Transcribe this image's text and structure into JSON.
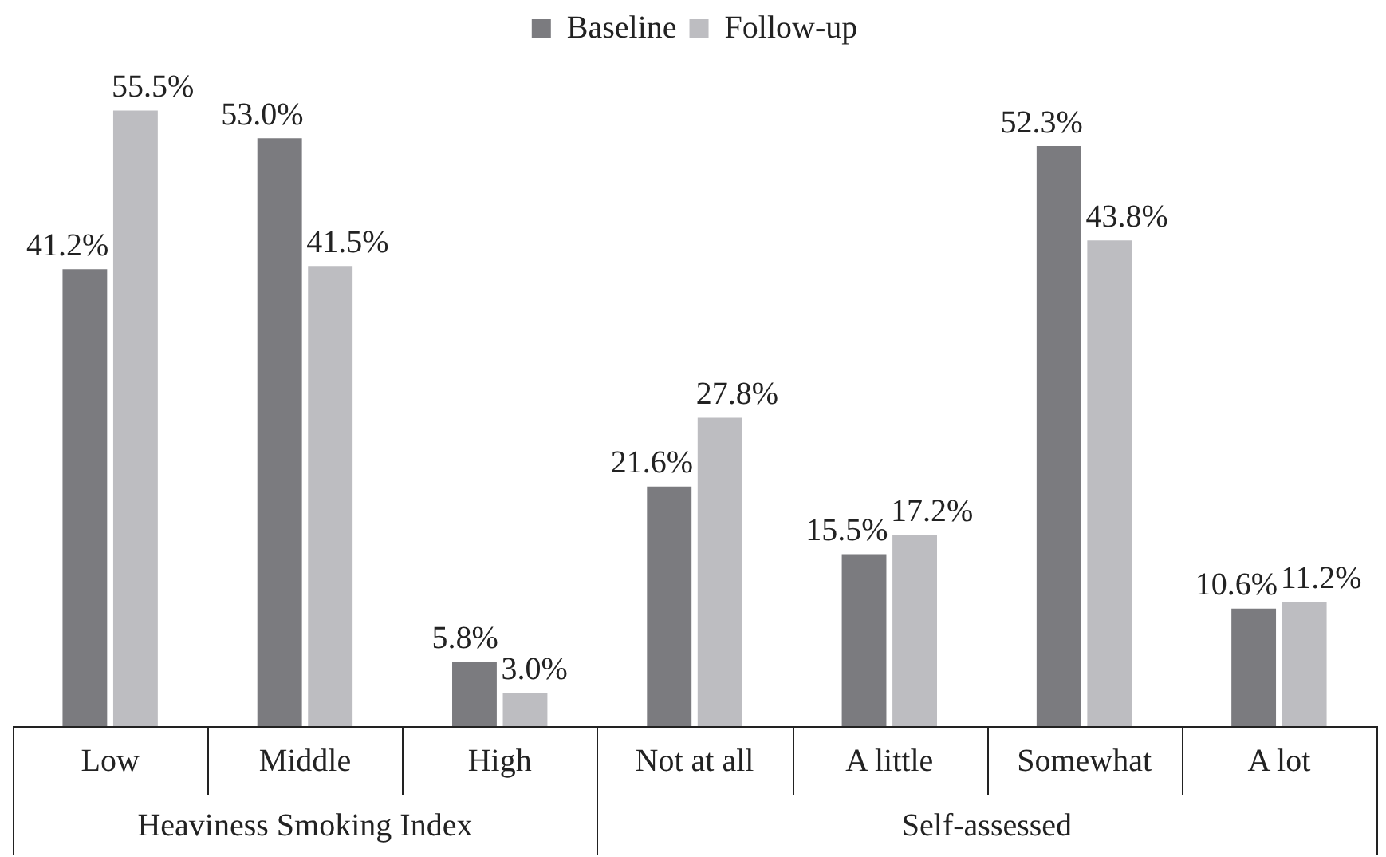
{
  "chart_data": {
    "type": "bar",
    "categories": [
      "Low",
      "Middle",
      "High",
      "Not at all",
      "A little",
      "Somewhat",
      "A lot"
    ],
    "series": [
      {
        "name": "Baseline",
        "color": "#7b7b7f",
        "values": [
          41.2,
          53.0,
          5.8,
          21.6,
          15.5,
          52.3,
          10.6
        ],
        "value_labels": [
          "41.2%",
          "53.0%",
          "5.8%",
          "21.6%",
          "15.5%",
          "52.3%",
          "10.6%"
        ]
      },
      {
        "name": "Follow-up",
        "color": "#bdbdc1",
        "values": [
          55.5,
          41.5,
          3.0,
          27.8,
          17.2,
          43.8,
          11.2
        ],
        "value_labels": [
          "55.5%",
          "41.5%",
          "3.0%",
          "27.8%",
          "17.2%",
          "43.8%",
          "11.2%"
        ]
      }
    ],
    "legend": "top",
    "annotations": [
      "Heaviness Smoking Index",
      "Self-assessed"
    ]
  }
}
